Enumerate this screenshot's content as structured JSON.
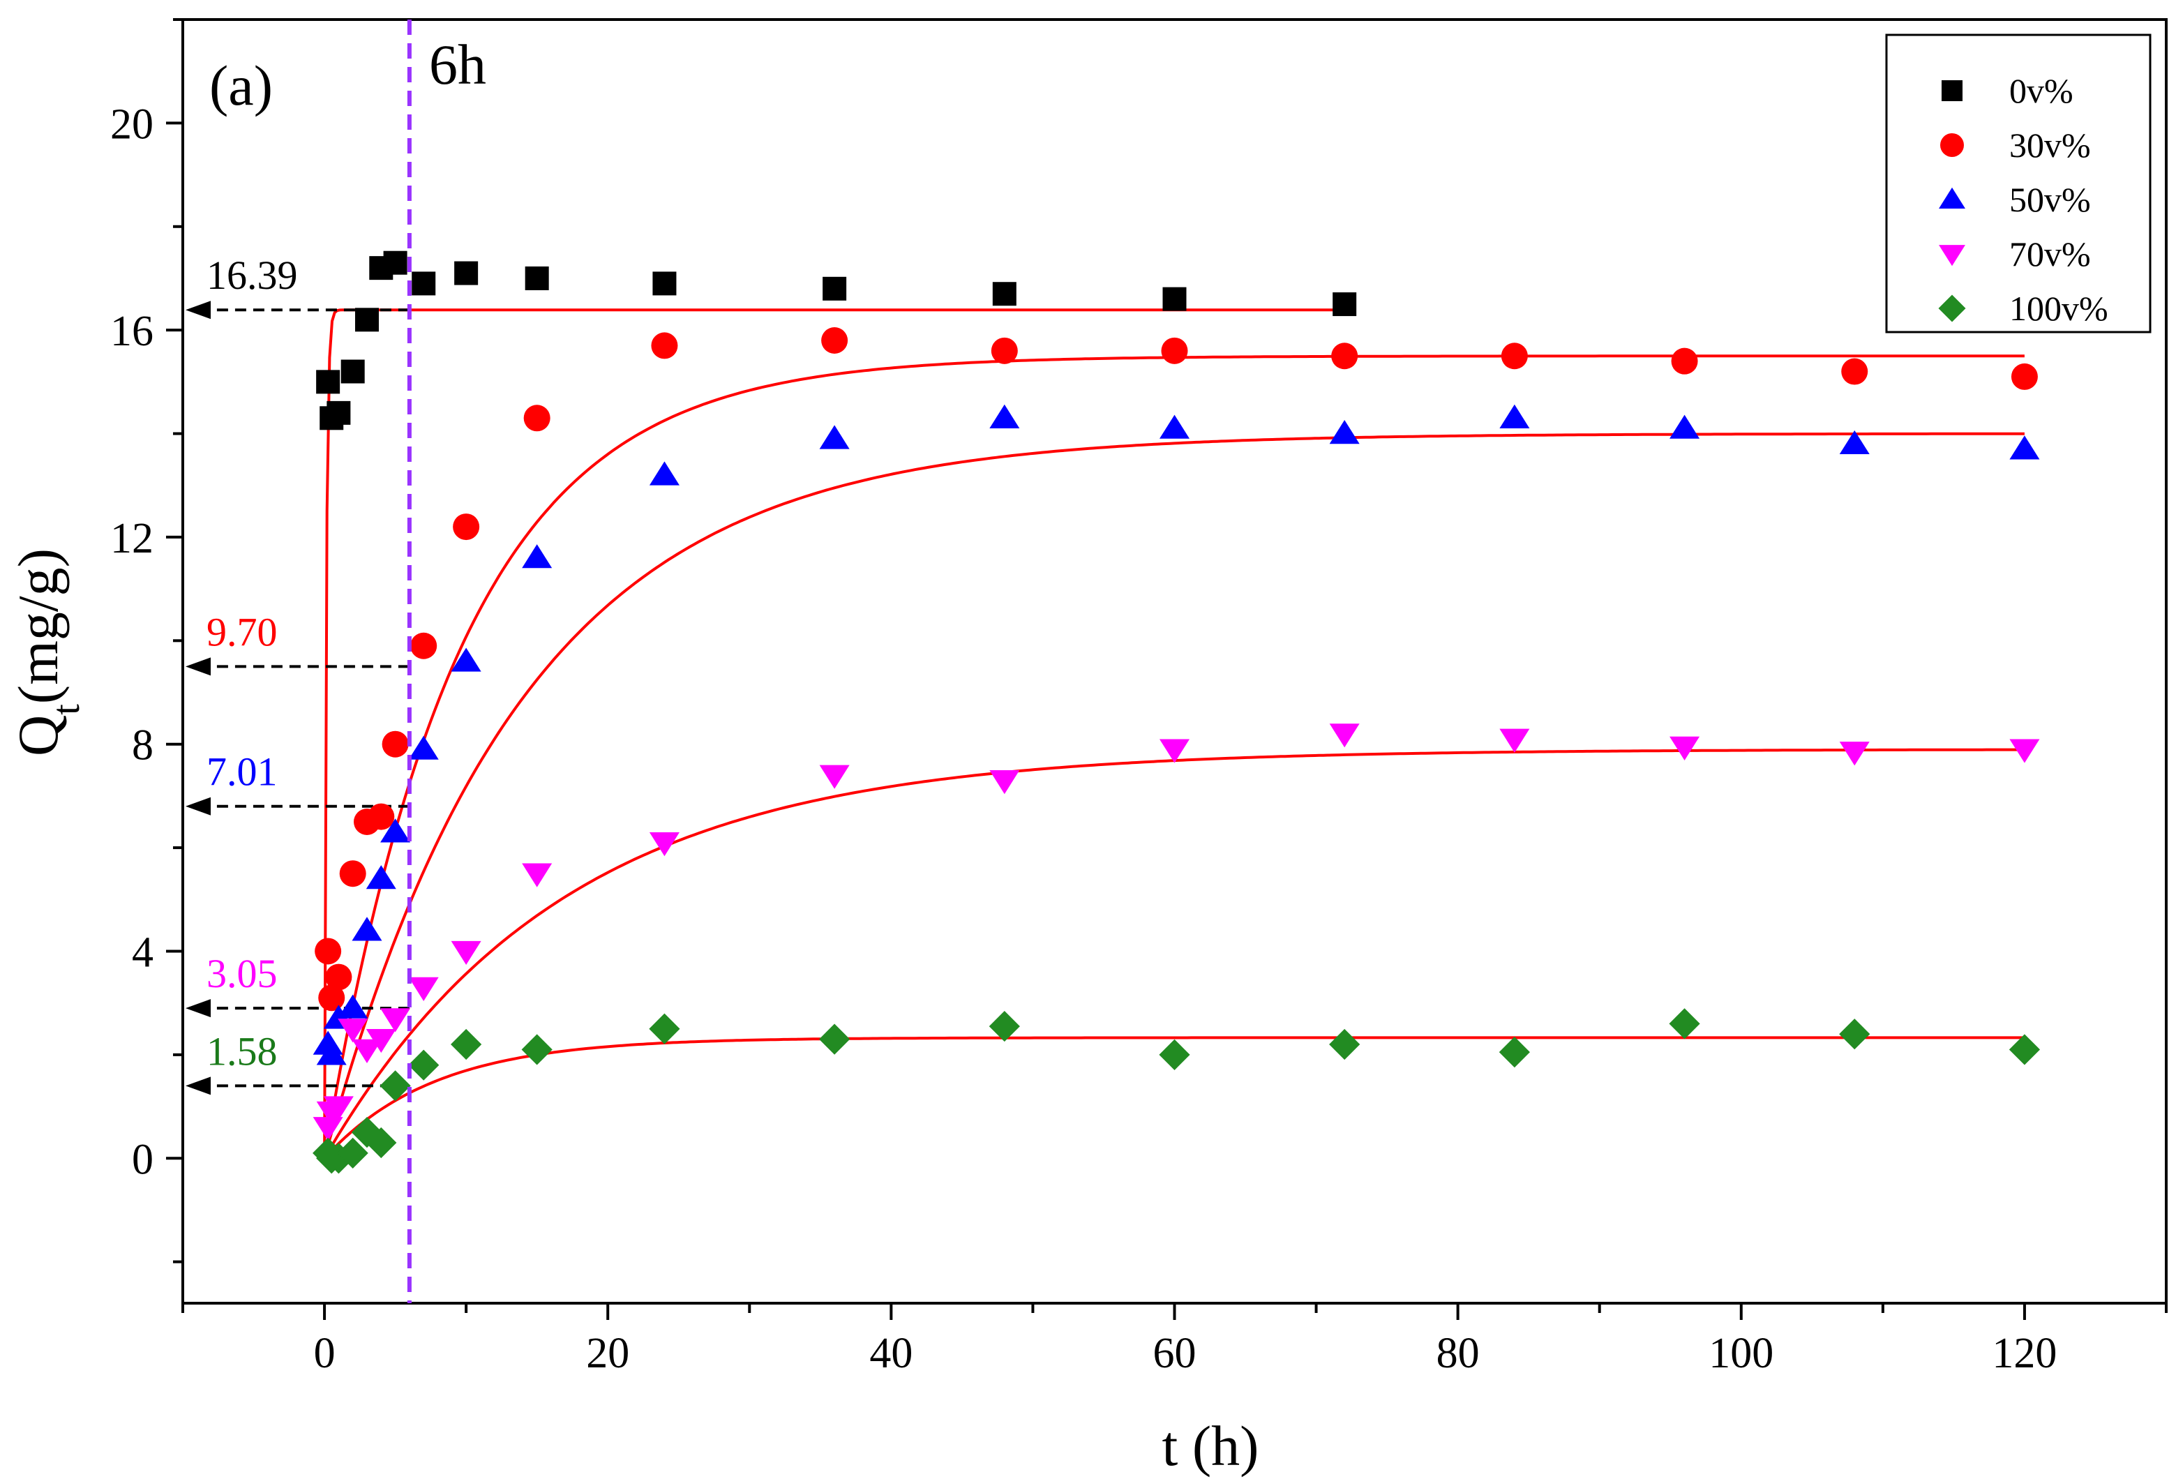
{
  "chart_data": {
    "type": "scatter",
    "panel_label": "(a)",
    "xlabel": "t (h)",
    "ylabel": {
      "main": "Q",
      "sub": "t",
      "rest": "(mg/g)"
    },
    "xlim": [
      -10,
      130
    ],
    "ylim": [
      -2.8,
      22
    ],
    "xticks": [
      0,
      20,
      40,
      60,
      80,
      100,
      120
    ],
    "yticks": [
      0,
      4,
      8,
      12,
      16,
      20
    ],
    "vline": {
      "x": 6,
      "label": "6h",
      "color": "#9933ff",
      "label_color": "#7a1f9e"
    },
    "series": [
      {
        "name": "0v%",
        "marker": "square",
        "color": "#000000",
        "x": [
          0.25,
          0.5,
          1,
          2,
          3,
          4,
          5,
          7,
          10,
          15,
          24,
          36,
          48,
          60,
          72
        ],
        "y": [
          15.0,
          14.3,
          14.4,
          15.2,
          16.2,
          17.2,
          17.3,
          16.9,
          17.1,
          17.0,
          16.9,
          16.8,
          16.7,
          16.6,
          16.5
        ],
        "fit": {
          "qe": 16.39,
          "k": 8.0,
          "xmax": 72
        }
      },
      {
        "name": "30v%",
        "marker": "circle",
        "color": "#ff0000",
        "x": [
          0.25,
          0.5,
          1,
          2,
          3,
          4,
          5,
          7,
          10,
          15,
          24,
          36,
          48,
          60,
          72,
          84,
          96,
          108,
          120
        ],
        "y": [
          4.0,
          3.1,
          3.5,
          5.5,
          6.5,
          6.6,
          8.0,
          9.9,
          12.2,
          14.3,
          15.7,
          15.8,
          15.6,
          15.6,
          15.5,
          15.5,
          15.4,
          15.2,
          15.1
        ],
        "fit": {
          "qe": 15.5,
          "k": 0.105,
          "xmax": 120
        }
      },
      {
        "name": "50v%",
        "marker": "triangle-up",
        "color": "#0000ff",
        "x": [
          0.25,
          0.5,
          1,
          2,
          3,
          4,
          5,
          7,
          10,
          15,
          24,
          36,
          48,
          60,
          72,
          84,
          96,
          108,
          120
        ],
        "y": [
          2.2,
          2.0,
          2.7,
          2.9,
          4.4,
          5.4,
          6.3,
          7.9,
          9.6,
          11.6,
          13.2,
          13.9,
          14.3,
          14.1,
          14.0,
          14.3,
          14.1,
          13.8,
          13.7
        ],
        "fit": {
          "qe": 14.0,
          "k": 0.072,
          "xmax": 120
        }
      },
      {
        "name": "70v%",
        "marker": "triangle-down",
        "color": "#ff00ff",
        "x": [
          0.25,
          0.5,
          1,
          2,
          3,
          4,
          5,
          7,
          10,
          15,
          24,
          36,
          48,
          60,
          72,
          84,
          96,
          108,
          120
        ],
        "y": [
          0.6,
          0.9,
          1.0,
          2.5,
          2.1,
          2.3,
          2.7,
          3.3,
          4.0,
          5.5,
          6.1,
          7.4,
          7.3,
          7.9,
          8.2,
          8.1,
          7.95,
          7.85,
          7.9
        ],
        "fit": {
          "qe": 7.9,
          "k": 0.06,
          "xmax": 120
        }
      },
      {
        "name": "100v%",
        "marker": "diamond",
        "color": "#228b22",
        "x": [
          0.25,
          0.5,
          1,
          2,
          3,
          4,
          5,
          7,
          10,
          15,
          24,
          36,
          48,
          60,
          72,
          84,
          96,
          108,
          120
        ],
        "y": [
          0.1,
          0.0,
          0.0,
          0.1,
          0.5,
          0.3,
          1.4,
          1.8,
          2.2,
          2.1,
          2.5,
          2.3,
          2.55,
          2.0,
          2.2,
          2.05,
          2.6,
          2.4,
          2.1
        ],
        "fit": {
          "qe": 2.33,
          "k": 0.13,
          "xmax": 120
        }
      }
    ],
    "annotations": [
      {
        "text": "16.39",
        "y": 16.39,
        "color": "#000000"
      },
      {
        "text": "9.70",
        "y": 9.5,
        "color": "#ff0000"
      },
      {
        "text": "7.01",
        "y": 6.8,
        "color": "#0000ff"
      },
      {
        "text": "3.05",
        "y": 2.9,
        "color": "#ff00ff"
      },
      {
        "text": "1.58",
        "y": 1.4,
        "color": "#1a7a1a"
      }
    ],
    "fit_color": "#ff0000",
    "legend": {
      "position": "top-right"
    }
  }
}
